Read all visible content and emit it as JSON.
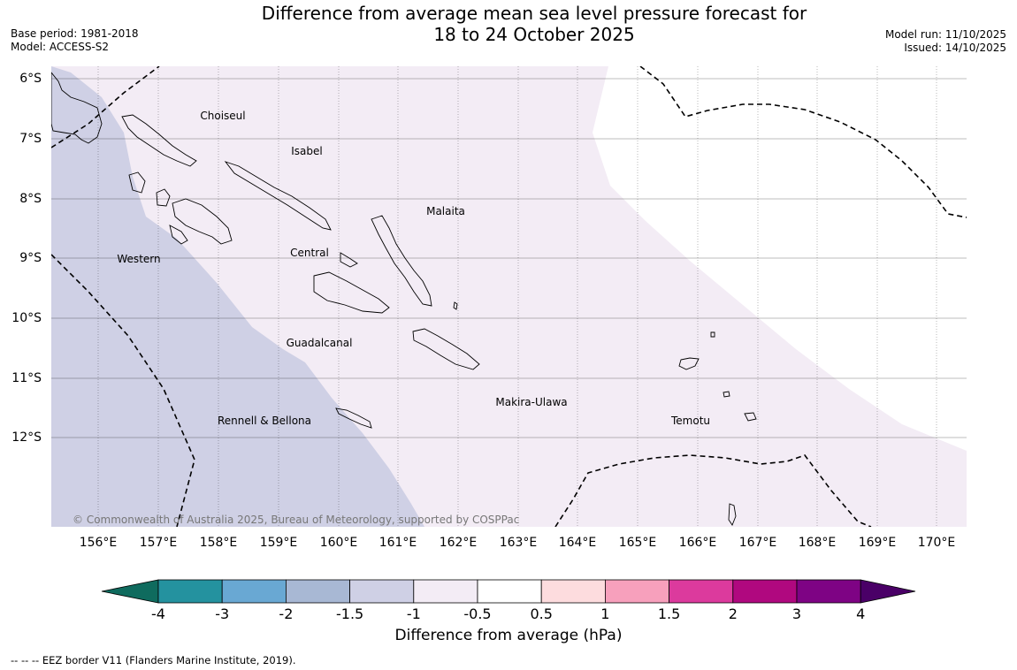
{
  "header": {
    "title_line1": "Difference from average mean sea level pressure forecast for",
    "title_line2": "18 to 24 October 2025",
    "base_period": "Base period: 1981-2018",
    "model": "Model: ACCESS-S2",
    "model_run": "Model run: 11/10/2025",
    "issued": "Issued: 14/10/2025"
  },
  "map": {
    "latitudes": [
      "6°S",
      "7°S",
      "8°S",
      "9°S",
      "10°S",
      "11°S",
      "12°S"
    ],
    "longitudes": [
      "156°E",
      "157°E",
      "158°E",
      "159°E",
      "160°E",
      "161°E",
      "162°E",
      "163°E",
      "164°E",
      "165°E",
      "166°E",
      "167°E",
      "168°E",
      "169°E",
      "170°E"
    ],
    "regions": [
      {
        "name": "Choiseul"
      },
      {
        "name": "Isabel"
      },
      {
        "name": "Malaita"
      },
      {
        "name": "Western"
      },
      {
        "name": "Central"
      },
      {
        "name": "Guadalcanal"
      },
      {
        "name": "Makira-Ulawa"
      },
      {
        "name": "Rennell & Bellona"
      },
      {
        "name": "Temotu"
      }
    ],
    "copyright": "© Commonwealth of Australia 2025, Bureau of Meteorology, supported by COSPPac",
    "colors": {
      "band_minus_1_5_to_minus_1": "#cfd0e5",
      "band_minus_1_to_minus_0_5": "#f3ecf5",
      "band_minus_0_5_to_0_5": "#ffffff",
      "eez_line": "#000000"
    }
  },
  "colorbar": {
    "ticks": [
      "-4",
      "-3",
      "-2",
      "-1.5",
      "-1",
      "-0.5",
      "0.5",
      "1",
      "1.5",
      "2",
      "3",
      "4"
    ],
    "colors": [
      "#0f6b5e",
      "#24929f",
      "#69a8d3",
      "#a8b8d4",
      "#cfd0e5",
      "#f3ecf5",
      "#ffffff",
      "#fddcde",
      "#f7a0bc",
      "#dc3a9d",
      "#b0087f",
      "#7e0384",
      "#4a0067"
    ],
    "label": "Difference from average (hPa)"
  },
  "footnote": "--  --  -- EEZ border V11 (Flanders Marine Institute, 2019)."
}
